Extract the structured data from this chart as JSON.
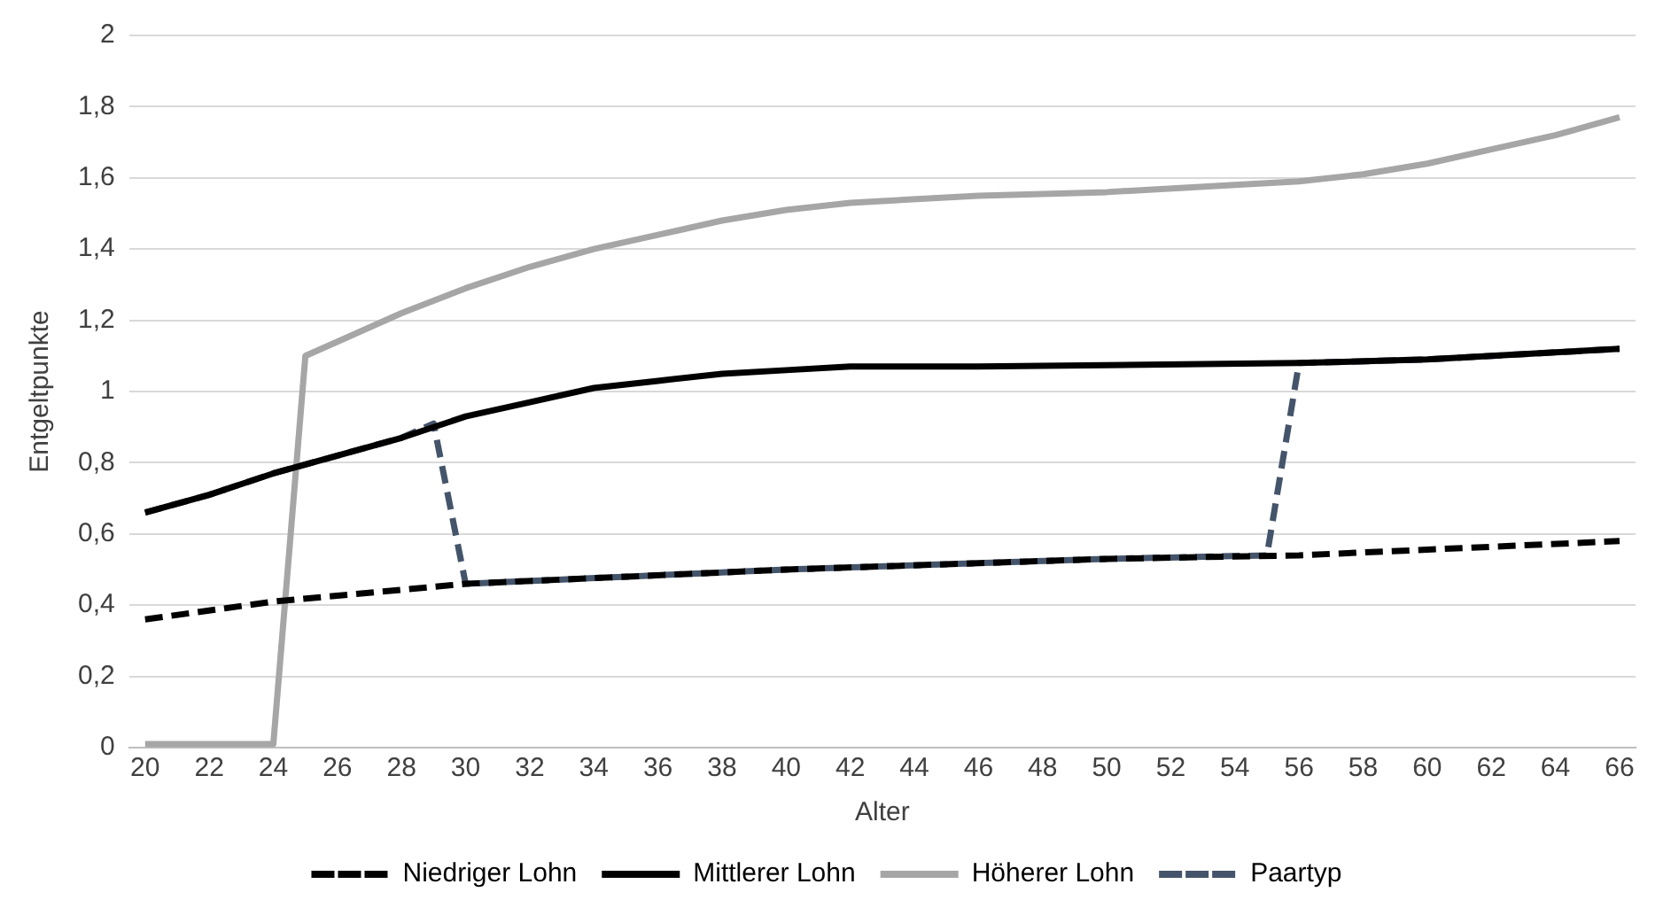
{
  "chart_data": {
    "type": "line",
    "xlabel": "Alter",
    "ylabel": "Entgeltpunkte",
    "xlim": [
      19.5,
      66.5
    ],
    "xticks": [
      20,
      22,
      24,
      26,
      28,
      30,
      32,
      34,
      36,
      38,
      40,
      42,
      44,
      46,
      48,
      50,
      52,
      54,
      56,
      58,
      60,
      62,
      64,
      66
    ],
    "ylim": [
      0,
      2
    ],
    "yticks": [
      0,
      {
        "value": 0.2,
        "label": "0,2"
      },
      {
        "value": 0.4,
        "label": "0,4"
      },
      {
        "value": 0.6,
        "label": "0,6"
      },
      {
        "value": 0.8,
        "label": "0,8"
      },
      1,
      {
        "value": 1.2,
        "label": "1,2"
      },
      {
        "value": 1.4,
        "label": "1,4"
      },
      {
        "value": 1.6,
        "label": "1,6"
      },
      {
        "value": 1.8,
        "label": "1,8"
      },
      2
    ],
    "grid": "y",
    "legend": "bottom",
    "marker": "none",
    "series": [
      {
        "name": "Niedriger Lohn",
        "color": "#000000",
        "line_style": "dashed",
        "x": [
          20,
          24,
          30,
          40,
          50,
          56,
          66
        ],
        "values": [
          0.36,
          0.41,
          0.46,
          0.5,
          0.53,
          0.54,
          0.58
        ]
      },
      {
        "name": "Mittlerer Lohn",
        "color": "#000000",
        "line_style": "solid",
        "x": [
          20,
          22,
          24,
          26,
          28,
          30,
          32,
          34,
          36,
          38,
          40,
          42,
          46,
          56,
          60,
          64,
          66
        ],
        "values": [
          0.66,
          0.71,
          0.77,
          0.82,
          0.87,
          0.93,
          0.97,
          1.01,
          1.03,
          1.05,
          1.06,
          1.07,
          1.07,
          1.08,
          1.09,
          1.11,
          1.12
        ]
      },
      {
        "name": "Höherer Lohn",
        "color": "#a6a6a6",
        "line_style": "solid",
        "x": [
          20,
          24,
          25,
          26,
          28,
          30,
          32,
          34,
          36,
          38,
          40,
          42,
          46,
          50,
          54,
          56,
          58,
          60,
          62,
          64,
          66
        ],
        "values": [
          0.01,
          0.01,
          1.1,
          1.14,
          1.22,
          1.29,
          1.35,
          1.4,
          1.44,
          1.48,
          1.51,
          1.53,
          1.55,
          1.56,
          1.58,
          1.59,
          1.61,
          1.64,
          1.68,
          1.72,
          1.77
        ]
      },
      {
        "name": "Paartyp",
        "color": "#44546a",
        "line_style": "dashed",
        "x": [
          20,
          22,
          24,
          26,
          28,
          29,
          30,
          40,
          50,
          55,
          56,
          60,
          64,
          66
        ],
        "values": [
          0.66,
          0.71,
          0.77,
          0.82,
          0.87,
          0.91,
          0.46,
          0.5,
          0.53,
          0.54,
          1.08,
          1.09,
          1.11,
          1.12
        ]
      }
    ]
  }
}
